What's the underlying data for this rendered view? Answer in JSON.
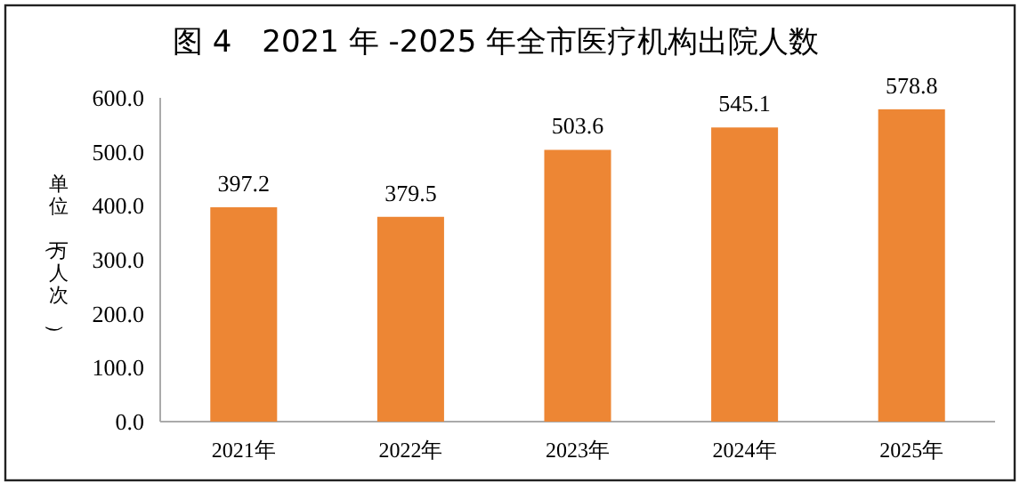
{
  "chart_data": {
    "type": "bar",
    "title": "图 4　2021 年 -2025 年全市医疗机构出院人数",
    "ylabel": "单位（万人次）",
    "categories": [
      "2021年",
      "2022年",
      "2023年",
      "2024年",
      "2025年"
    ],
    "values": [
      397.2,
      379.5,
      503.6,
      545.1,
      578.8
    ],
    "color": "#ed8634",
    "data_labels": true,
    "ylim": [
      0,
      600
    ],
    "yticks": [
      {
        "value": 0,
        "label": "0.0"
      },
      {
        "value": 100,
        "label": "100.0"
      },
      {
        "value": 200,
        "label": "200.0"
      },
      {
        "value": 300,
        "label": "300.0"
      },
      {
        "value": 400,
        "label": "400.0"
      },
      {
        "value": 500,
        "label": "500.0"
      },
      {
        "value": 600,
        "label": "600.0"
      }
    ],
    "grid": false
  }
}
